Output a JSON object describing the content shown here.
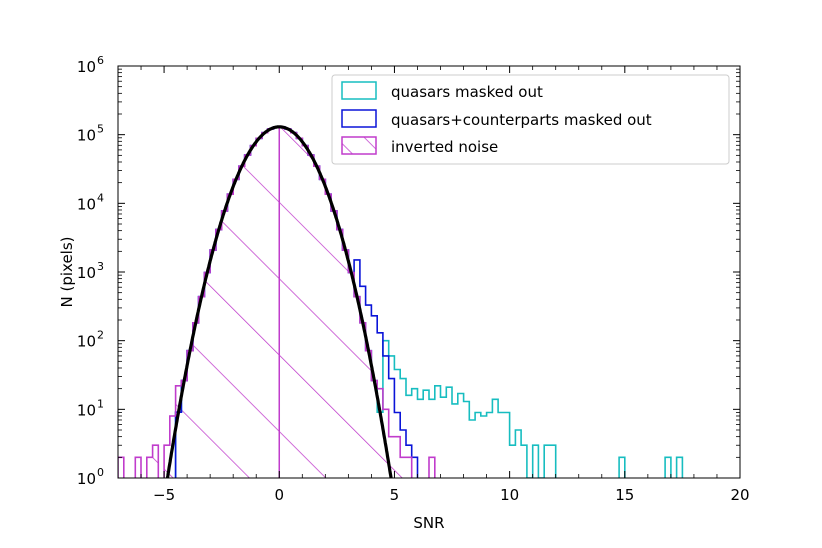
{
  "chart_data": {
    "type": "histogram",
    "title": "",
    "xlabel": "SNR",
    "ylabel": "N (pixels)",
    "xlim": [
      -7.0,
      20.0
    ],
    "ylim_log10": [
      0,
      6
    ],
    "yscale": "log",
    "x_ticks": [
      {
        "value": -5,
        "label": "−5"
      },
      {
        "value": 0,
        "label": "0"
      },
      {
        "value": 5,
        "label": "5"
      },
      {
        "value": 10,
        "label": "10"
      },
      {
        "value": 15,
        "label": "15"
      },
      {
        "value": 20,
        "label": "20"
      }
    ],
    "y_ticks": [
      {
        "exp": 0,
        "base": "10",
        "sup": "0"
      },
      {
        "exp": 1,
        "base": "10",
        "sup": "1"
      },
      {
        "exp": 2,
        "base": "10",
        "sup": "2"
      },
      {
        "exp": 3,
        "base": "10",
        "sup": "3"
      },
      {
        "exp": 4,
        "base": "10",
        "sup": "4"
      },
      {
        "exp": 5,
        "base": "10",
        "sup": "5"
      },
      {
        "exp": 6,
        "base": "10",
        "sup": "6"
      }
    ],
    "legend": {
      "position": "top-right",
      "entries": [
        {
          "label": "quasars masked out",
          "color": "#17bdc0",
          "hatch": false
        },
        {
          "label": "quasars+counterparts masked out",
          "color": "#0a14d8",
          "hatch": false
        },
        {
          "label": "inverted noise",
          "color": "#c03ccc",
          "hatch": true
        }
      ]
    },
    "series": [
      {
        "name": "quasars masked out",
        "color": "#17bdc0",
        "bin_width": 0.25,
        "tail_points": [
          [
            4.5,
            100
          ],
          [
            4.75,
            60
          ],
          [
            5.0,
            38
          ],
          [
            5.25,
            28
          ],
          [
            5.5,
            16
          ],
          [
            5.75,
            20
          ],
          [
            6.0,
            14
          ],
          [
            6.25,
            19
          ],
          [
            6.5,
            14
          ],
          [
            6.75,
            22
          ],
          [
            7.0,
            15
          ],
          [
            7.25,
            21
          ],
          [
            7.5,
            12
          ],
          [
            7.75,
            17
          ],
          [
            8.0,
            13
          ],
          [
            8.25,
            7
          ],
          [
            8.5,
            9
          ],
          [
            8.75,
            8
          ],
          [
            9.0,
            9
          ],
          [
            9.25,
            14
          ],
          [
            9.5,
            9
          ],
          [
            9.75,
            9
          ],
          [
            10.0,
            3
          ],
          [
            10.25,
            5
          ],
          [
            10.5,
            3
          ],
          [
            10.75,
            1
          ],
          [
            11.0,
            3
          ],
          [
            11.25,
            1
          ],
          [
            11.5,
            3
          ],
          [
            11.75,
            3
          ],
          [
            14.75,
            2
          ],
          [
            16.75,
            2
          ],
          [
            17.25,
            2
          ]
        ]
      },
      {
        "name": "quasars+counterparts masked out",
        "color": "#0a14d8",
        "bin_width": 0.25,
        "tail_points": [
          [
            3.25,
            1500
          ],
          [
            3.5,
            620
          ],
          [
            3.75,
            330
          ],
          [
            4.0,
            230
          ],
          [
            4.25,
            130
          ],
          [
            4.5,
            60
          ],
          [
            4.75,
            28
          ],
          [
            5.0,
            9
          ],
          [
            5.25,
            5
          ],
          [
            5.5,
            3
          ],
          [
            5.75,
            2
          ]
        ]
      },
      {
        "name": "inverted noise",
        "color": "#c03ccc",
        "bin_width": 0.25,
        "tail_points": [
          [
            -7.0,
            2
          ],
          [
            -6.25,
            2
          ],
          [
            -5.75,
            2
          ],
          [
            -5.5,
            3
          ],
          [
            -5.0,
            3
          ],
          [
            -4.75,
            8
          ],
          [
            -4.5,
            22
          ],
          [
            4.25,
            20
          ],
          [
            4.5,
            10
          ],
          [
            4.75,
            4
          ],
          [
            5.0,
            4
          ],
          [
            5.25,
            2
          ],
          [
            5.5,
            2
          ],
          [
            6.5,
            2
          ]
        ]
      },
      {
        "name": "gaussian fit",
        "color": "#000000",
        "peak": 130000,
        "mean": 0.0,
        "sigma": 1.0
      }
    ]
  }
}
